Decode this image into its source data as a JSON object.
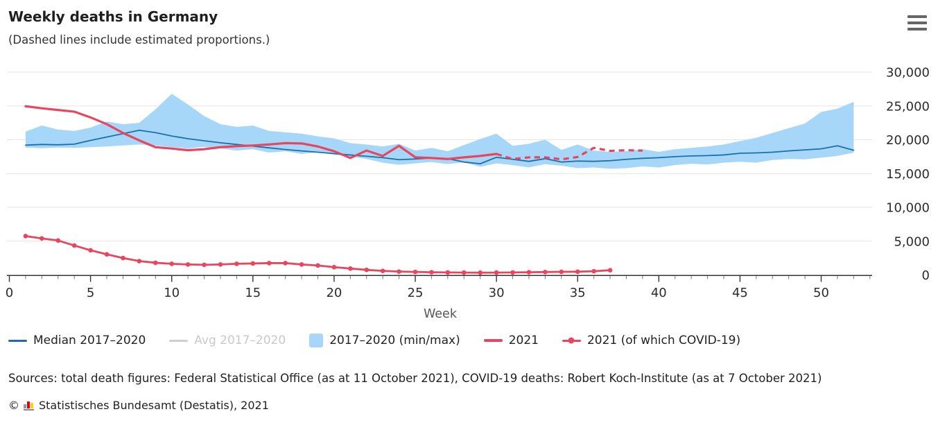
{
  "header": {
    "title": "Weekly deaths in Germany",
    "subtitle": "(Dashed lines include estimated proportions.)"
  },
  "menu": {
    "icon": "hamburger-icon"
  },
  "colors": {
    "median_blue": "#1d6ea9",
    "band_blue": "#a6d7f8",
    "red_2021": "#e8455e",
    "disabled_gray": "#c9c9c9",
    "gridline": "#e6e6e6",
    "axis": "#333333",
    "tick_label": "#2b2b2b",
    "axis_title": "#555555"
  },
  "chart_data": {
    "type": "line",
    "title": "Weekly deaths in Germany",
    "subtitle": "(Dashed lines include estimated proportions.)",
    "xlabel": "Week",
    "ylabel": "",
    "xlim": [
      0,
      53.2
    ],
    "ylim": [
      0,
      30000
    ],
    "grid": "horizontal",
    "y_axis_side": "right",
    "legend_position": "bottom",
    "x_axis": {
      "title": "Week",
      "minor_step": 1,
      "minor_max": 53,
      "ticks": [
        {
          "value": 0,
          "label": "0"
        },
        {
          "value": 5,
          "label": "5"
        },
        {
          "value": 10,
          "label": "10"
        },
        {
          "value": 15,
          "label": "15"
        },
        {
          "value": 20,
          "label": "20"
        },
        {
          "value": 25,
          "label": "25"
        },
        {
          "value": 30,
          "label": "30"
        },
        {
          "value": 35,
          "label": "35"
        },
        {
          "value": 40,
          "label": "40"
        },
        {
          "value": 45,
          "label": "45"
        },
        {
          "value": 50,
          "label": "50"
        }
      ]
    },
    "y_axis": {
      "ticks": [
        {
          "value": 0,
          "label": "0"
        },
        {
          "value": 5000,
          "label": "5,000"
        },
        {
          "value": 10000,
          "label": "10,000"
        },
        {
          "value": 15000,
          "label": "15,000"
        },
        {
          "value": 20000,
          "label": "20,000"
        },
        {
          "value": 25000,
          "label": "25,000"
        },
        {
          "value": 30000,
          "label": "30,000"
        }
      ]
    },
    "legend": [
      {
        "label": "Median 2017–2020",
        "symbol": "line",
        "color": "#1d6ea9",
        "text_color": "#222222",
        "disabled": false
      },
      {
        "label": "Avg 2017–2020",
        "symbol": "line",
        "color": "#cfcfcf",
        "text_color": "#c9c9c9",
        "disabled": true
      },
      {
        "label": "2017–2020 (min/max)",
        "symbol": "square",
        "color": "#a6d7f8",
        "text_color": "#222222",
        "disabled": false
      },
      {
        "label": "2021",
        "symbol": "line-thick",
        "color": "#e8455e",
        "text_color": "#222222",
        "disabled": false
      },
      {
        "label": "2021 (of which COVID-19)",
        "symbol": "line-marker",
        "color": "#e8455e",
        "text_color": "#222222",
        "disabled": false
      }
    ],
    "series": [
      {
        "id": "minmax-band",
        "name": "2017–2020 (min/max)",
        "type": "band",
        "color": "#a6d7f8",
        "x_start": 1,
        "x_step": 1,
        "max": [
          21200,
          22100,
          21500,
          21300,
          21800,
          22700,
          22300,
          22500,
          24500,
          26800,
          25200,
          23500,
          22300,
          21900,
          22100,
          21300,
          21100,
          20900,
          20500,
          20200,
          19500,
          19300,
          19000,
          19400,
          18400,
          18800,
          18300,
          19200,
          20100,
          20900,
          19100,
          19400,
          20000,
          18500,
          19300,
          18400,
          18200,
          18300,
          18600,
          18200,
          18600,
          18800,
          19000,
          19300,
          19800,
          20300,
          21000,
          21700,
          22400,
          24100,
          24600,
          25600
        ],
        "min": [
          18850,
          18750,
          18850,
          18800,
          18900,
          19000,
          19150,
          19300,
          19150,
          18900,
          18700,
          18950,
          18700,
          18400,
          18600,
          18100,
          18300,
          17900,
          18150,
          17800,
          17500,
          17150,
          16600,
          16300,
          16500,
          16700,
          16400,
          16650,
          16000,
          16500,
          16250,
          15900,
          16400,
          16150,
          15800,
          15900,
          15700,
          15800,
          16050,
          15900,
          16250,
          16450,
          16350,
          16600,
          16750,
          16600,
          17000,
          17150,
          17100,
          17350,
          17600,
          18100
        ]
      },
      {
        "id": "median-2017-2020",
        "name": "Median 2017–2020",
        "type": "line",
        "color": "#1d6ea9",
        "width": 1.8,
        "x_start": 1,
        "x_step": 1,
        "values": [
          19200,
          19300,
          19250,
          19350,
          19900,
          20400,
          20900,
          21400,
          21050,
          20550,
          20150,
          19850,
          19550,
          19300,
          19050,
          18800,
          18550,
          18350,
          18150,
          17950,
          17750,
          17550,
          17350,
          17050,
          17150,
          17300,
          17200,
          16700,
          16450,
          17400,
          17100,
          16800,
          17200,
          16700,
          16850,
          16800,
          16900,
          17100,
          17250,
          17350,
          17500,
          17600,
          17650,
          17750,
          18000,
          18050,
          18150,
          18350,
          18500,
          18650,
          19100,
          18450
        ]
      },
      {
        "id": "avg-2017-2020",
        "name": "Avg 2017–2020",
        "type": "line",
        "color": "#cfcfcf",
        "width": 1.8,
        "x_start": 1,
        "x_step": 1,
        "disabled": true,
        "values": []
      },
      {
        "id": "total-2021",
        "name": "2021",
        "type": "line",
        "color": "#e8455e",
        "width": 3.2,
        "x_start": 1,
        "x_step": 1,
        "dash_from_week": 30,
        "values": [
          24950,
          24650,
          24400,
          24150,
          23300,
          22300,
          21000,
          19900,
          18900,
          18700,
          18450,
          18600,
          18900,
          19050,
          19150,
          19300,
          19500,
          19450,
          19000,
          18300,
          17300,
          18400,
          17600,
          19100,
          17400,
          17300,
          17150,
          17400,
          17600,
          17900,
          17150,
          17400,
          17400,
          17100,
          17450,
          18800,
          18350,
          18450,
          18400
        ]
      },
      {
        "id": "covid-2021",
        "name": "2021 (of which COVID-19)",
        "type": "line-marker",
        "color": "#e8455e",
        "width": 2.8,
        "marker_radius": 3.3,
        "x_start": 1,
        "x_step": 1,
        "values": [
          5750,
          5400,
          5100,
          4350,
          3650,
          3050,
          2500,
          2050,
          1800,
          1650,
          1550,
          1500,
          1550,
          1650,
          1700,
          1750,
          1750,
          1550,
          1400,
          1150,
          950,
          750,
          600,
          500,
          450,
          400,
          370,
          350,
          340,
          350,
          370,
          400,
          430,
          460,
          480,
          550,
          700
        ]
      }
    ]
  },
  "footer": {
    "sources": "Sources: total death figures: Federal Statistical Office (as at 11 October 2021), COVID-19 deaths: Robert Koch-Institute (as at 7 October 2021)",
    "copyright_symbol": "©",
    "copyright_text": "Statistisches Bundesamt (Destatis), 2021",
    "logo": "destatis-bars-icon"
  }
}
